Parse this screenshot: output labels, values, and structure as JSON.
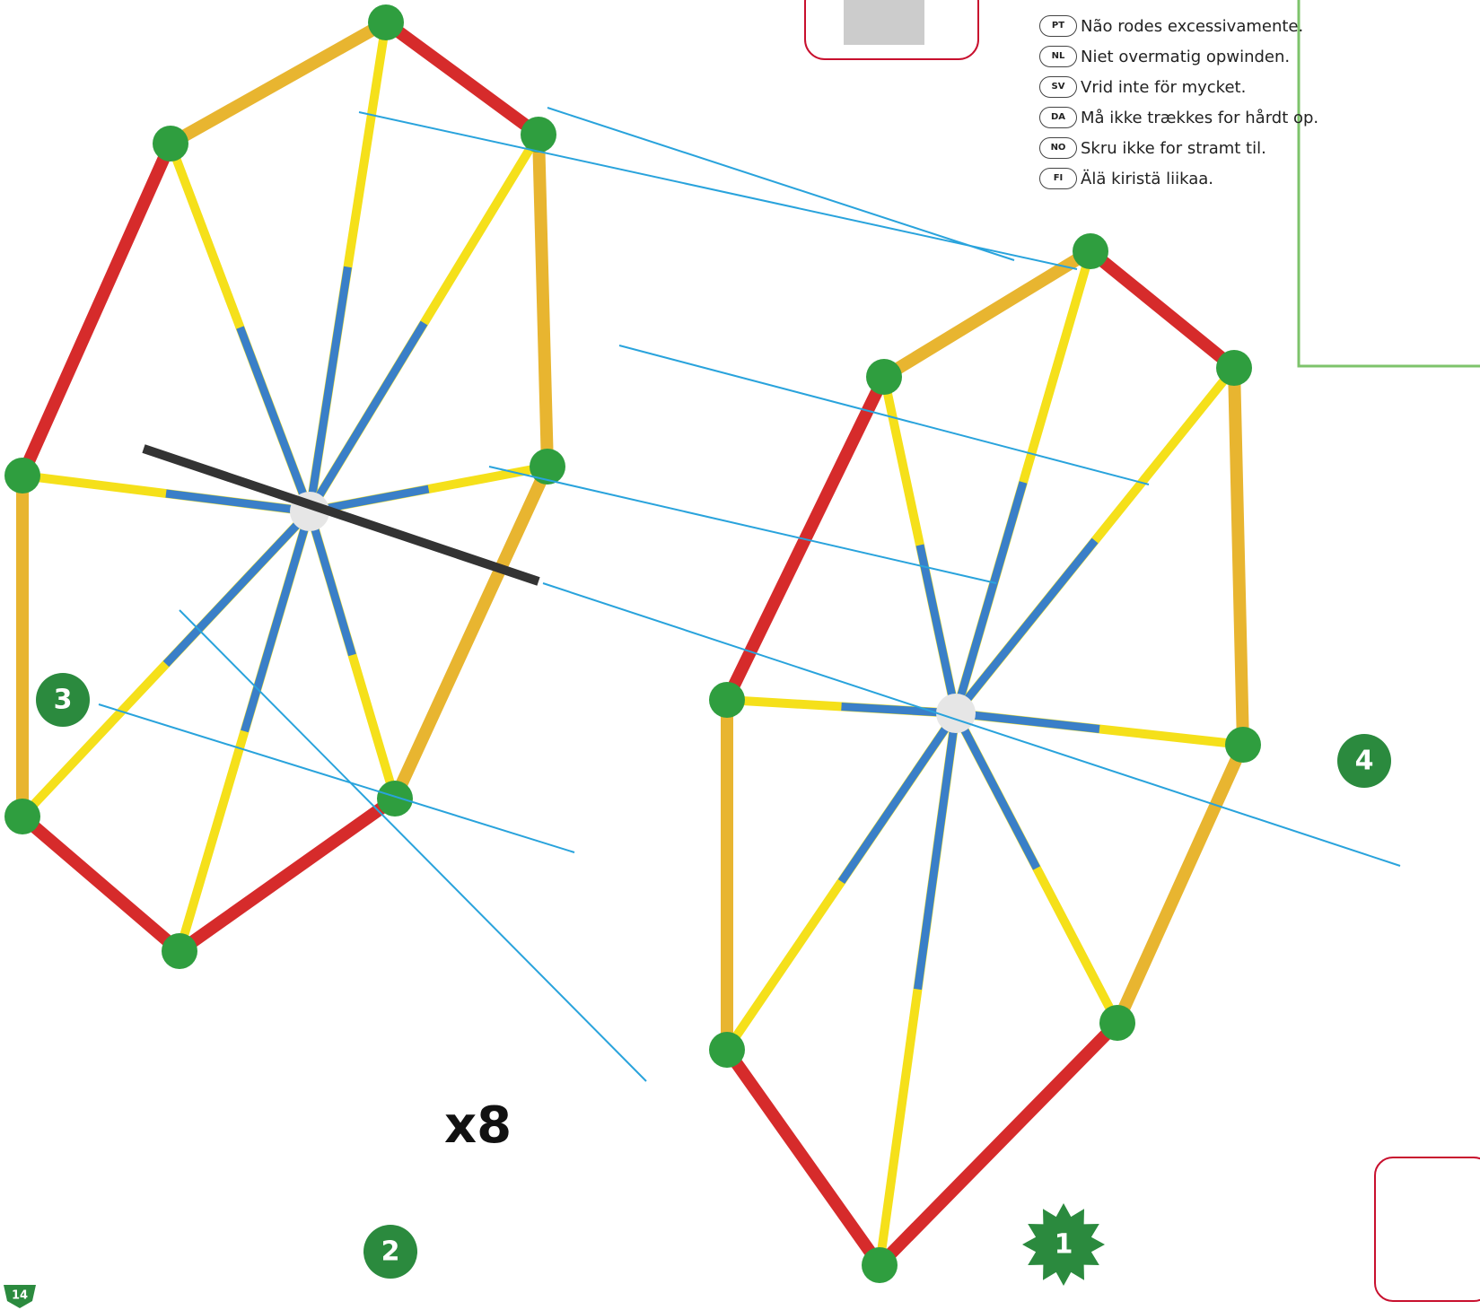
{
  "warnings": [
    {
      "code": "PT",
      "text": "Não rodes excessivamente."
    },
    {
      "code": "NL",
      "text": "Niet overmatig opwinden."
    },
    {
      "code": "SV",
      "text": "Vrid inte för mycket."
    },
    {
      "code": "DA",
      "text": "Må ikke trækkes for hårdt op."
    },
    {
      "code": "NO",
      "text": "Skru ikke for stramt til."
    },
    {
      "code": "FI",
      "text": "Älä kiristä liikaa."
    }
  ],
  "steps": [
    "1",
    "2",
    "3",
    "4"
  ],
  "quantity": "x8",
  "page_number": "14"
}
